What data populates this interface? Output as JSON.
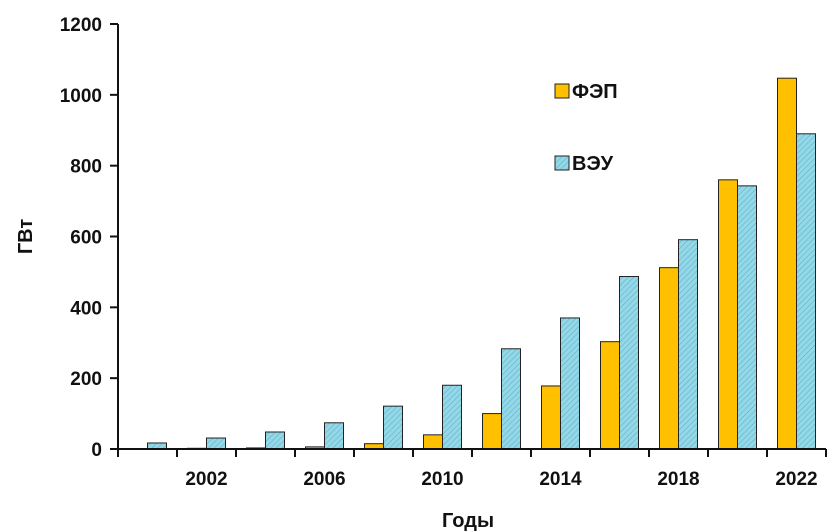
{
  "chart_data": {
    "type": "bar",
    "title": "",
    "xlabel": "Годы",
    "ylabel": "ГВт",
    "ylim": [
      0,
      1200
    ],
    "yticks": [
      0,
      200,
      400,
      600,
      800,
      1000,
      1200
    ],
    "x_tick_labels": [
      "2002",
      "2006",
      "2010",
      "2014",
      "2018",
      "2022"
    ],
    "legend_position": "top-right",
    "grid": false,
    "categories": [
      "2000",
      "2002",
      "2004",
      "2006",
      "2008",
      "2010",
      "2012",
      "2014",
      "2016",
      "2018",
      "2020",
      "2022"
    ],
    "series": [
      {
        "name": "ФЭП",
        "color": "#FFC000",
        "values": [
          1,
          2,
          3,
          6,
          15,
          40,
          100,
          178,
          303,
          512,
          760,
          1047
        ]
      },
      {
        "name": "ВЭУ",
        "color": "#92D8E8",
        "values": [
          17,
          31,
          48,
          74,
          121,
          180,
          283,
          370,
          487,
          591,
          743,
          890
        ]
      }
    ]
  }
}
